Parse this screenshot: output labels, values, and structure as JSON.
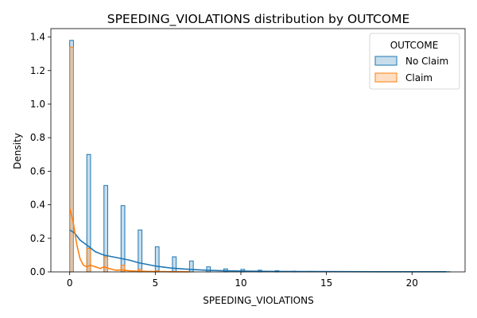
{
  "chart_data": {
    "type": "histogram",
    "title": "SPEEDING_VIOLATIONS distribution by OUTCOME",
    "xlabel": "SPEEDING_VIOLATIONS",
    "ylabel": "Density",
    "xlim": [
      -1.1,
      23.1
    ],
    "ylim": [
      0,
      1.45
    ],
    "xticks": [
      0,
      5,
      10,
      15,
      20
    ],
    "yticks": [
      0.0,
      0.2,
      0.4,
      0.6,
      0.8,
      1.0,
      1.2,
      1.4
    ],
    "bin_width": 0.22,
    "grid": false,
    "legend": {
      "title": "OUTCOME",
      "placement": "top-right"
    },
    "series": [
      {
        "name": "No Claim",
        "color": "#1f77b4",
        "bins": [
          {
            "x": 0,
            "density": 1.38
          },
          {
            "x": 1,
            "density": 0.7
          },
          {
            "x": 2,
            "density": 0.515
          },
          {
            "x": 3,
            "density": 0.395
          },
          {
            "x": 4,
            "density": 0.25
          },
          {
            "x": 5,
            "density": 0.15
          },
          {
            "x": 6,
            "density": 0.09
          },
          {
            "x": 7,
            "density": 0.065
          },
          {
            "x": 8,
            "density": 0.03
          },
          {
            "x": 9,
            "density": 0.018
          },
          {
            "x": 10,
            "density": 0.015
          },
          {
            "x": 11,
            "density": 0.01
          },
          {
            "x": 12,
            "density": 0.007
          },
          {
            "x": 13,
            "density": 0.004
          },
          {
            "x": 14,
            "density": 0.003
          },
          {
            "x": 15,
            "density": 0.002
          },
          {
            "x": 16,
            "density": 0.001
          },
          {
            "x": 17,
            "density": 0.001
          },
          {
            "x": 18,
            "density": 0.001
          },
          {
            "x": 19,
            "density": 0.001
          },
          {
            "x": 20,
            "density": 0.001
          },
          {
            "x": 22,
            "density": 0.001
          }
        ],
        "kde": [
          [
            0,
            0.25
          ],
          [
            0.3,
            0.23
          ],
          [
            0.6,
            0.19
          ],
          [
            1.0,
            0.16
          ],
          [
            1.5,
            0.12
          ],
          [
            2.0,
            0.1
          ],
          [
            2.5,
            0.09
          ],
          [
            3.0,
            0.08
          ],
          [
            3.5,
            0.07
          ],
          [
            4.0,
            0.055
          ],
          [
            4.5,
            0.045
          ],
          [
            5.0,
            0.035
          ],
          [
            5.5,
            0.028
          ],
          [
            6.0,
            0.022
          ],
          [
            7.0,
            0.015
          ],
          [
            8.0,
            0.01
          ],
          [
            9.0,
            0.007
          ],
          [
            10.0,
            0.005
          ],
          [
            12.0,
            0.003
          ],
          [
            14.0,
            0.002
          ],
          [
            16.0,
            0.0015
          ],
          [
            18.0,
            0.001
          ],
          [
            20.0,
            0.001
          ],
          [
            22.0,
            0.001
          ]
        ]
      },
      {
        "name": "Claim",
        "color": "#ff7f0e",
        "bins": [
          {
            "x": 0,
            "density": 1.34
          },
          {
            "x": 1,
            "density": 0.14
          },
          {
            "x": 2,
            "density": 0.09
          },
          {
            "x": 3,
            "density": 0.04
          },
          {
            "x": 4,
            "density": 0.015
          },
          {
            "x": 5,
            "density": 0.006
          },
          {
            "x": 6,
            "density": 0.003
          }
        ],
        "kde": [
          [
            0,
            0.38
          ],
          [
            0.2,
            0.3
          ],
          [
            0.4,
            0.17
          ],
          [
            0.6,
            0.08
          ],
          [
            0.8,
            0.04
          ],
          [
            1.0,
            0.03
          ],
          [
            1.2,
            0.04
          ],
          [
            1.5,
            0.03
          ],
          [
            1.8,
            0.02
          ],
          [
            2.0,
            0.03
          ],
          [
            2.3,
            0.02
          ],
          [
            2.7,
            0.01
          ],
          [
            3.0,
            0.012
          ],
          [
            3.5,
            0.006
          ],
          [
            4.0,
            0.004
          ],
          [
            5.0,
            0.002
          ],
          [
            6.0,
            0.001
          ],
          [
            7.0,
            0.0005
          ]
        ]
      }
    ]
  }
}
